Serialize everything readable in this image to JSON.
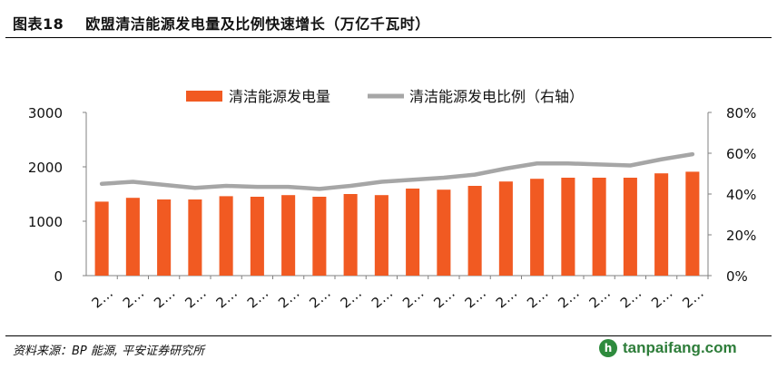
{
  "header": {
    "figure_number": "图表18",
    "title": "欧盟清洁能源发电量及比例快速增长（万亿千瓦时）"
  },
  "footer": {
    "source": "资料来源：BP 能源, 平安证券研究所",
    "watermark": "tanpaifang.com",
    "watermark_logo": "h"
  },
  "colors": {
    "bar": "#f15a22",
    "line": "#a6a6a6",
    "axis": "#808080"
  },
  "chart_data": {
    "type": "bar+line",
    "categories": [
      "2…",
      "2…",
      "2…",
      "2…",
      "2…",
      "2…",
      "2…",
      "2…",
      "2…",
      "2…",
      "2…",
      "2…",
      "2…",
      "2…",
      "2…",
      "2…",
      "2…",
      "2…",
      "2…",
      "2…"
    ],
    "series": [
      {
        "name": "清洁能源发电量",
        "type": "bar",
        "axis": "left",
        "values": [
          1360,
          1430,
          1400,
          1400,
          1460,
          1450,
          1480,
          1450,
          1500,
          1480,
          1600,
          1580,
          1650,
          1730,
          1780,
          1800,
          1800,
          1800,
          1880,
          1910
        ]
      },
      {
        "name": "清洁能源发电比例（右轴）",
        "type": "line",
        "axis": "right",
        "values": [
          45,
          46,
          44.5,
          43,
          44,
          43.5,
          43.5,
          42.5,
          44,
          46,
          47,
          48,
          49.5,
          52.5,
          55,
          55,
          54.5,
          54,
          57,
          59.5
        ]
      }
    ],
    "left_axis": {
      "min": 0,
      "max": 3000,
      "ticks": [
        "0",
        "1000",
        "2000",
        "3000"
      ]
    },
    "right_axis": {
      "min": 0,
      "max": 80,
      "ticks": [
        "0%",
        "20%",
        "40%",
        "60%",
        "80%"
      ]
    },
    "legend_position": "top-center"
  }
}
